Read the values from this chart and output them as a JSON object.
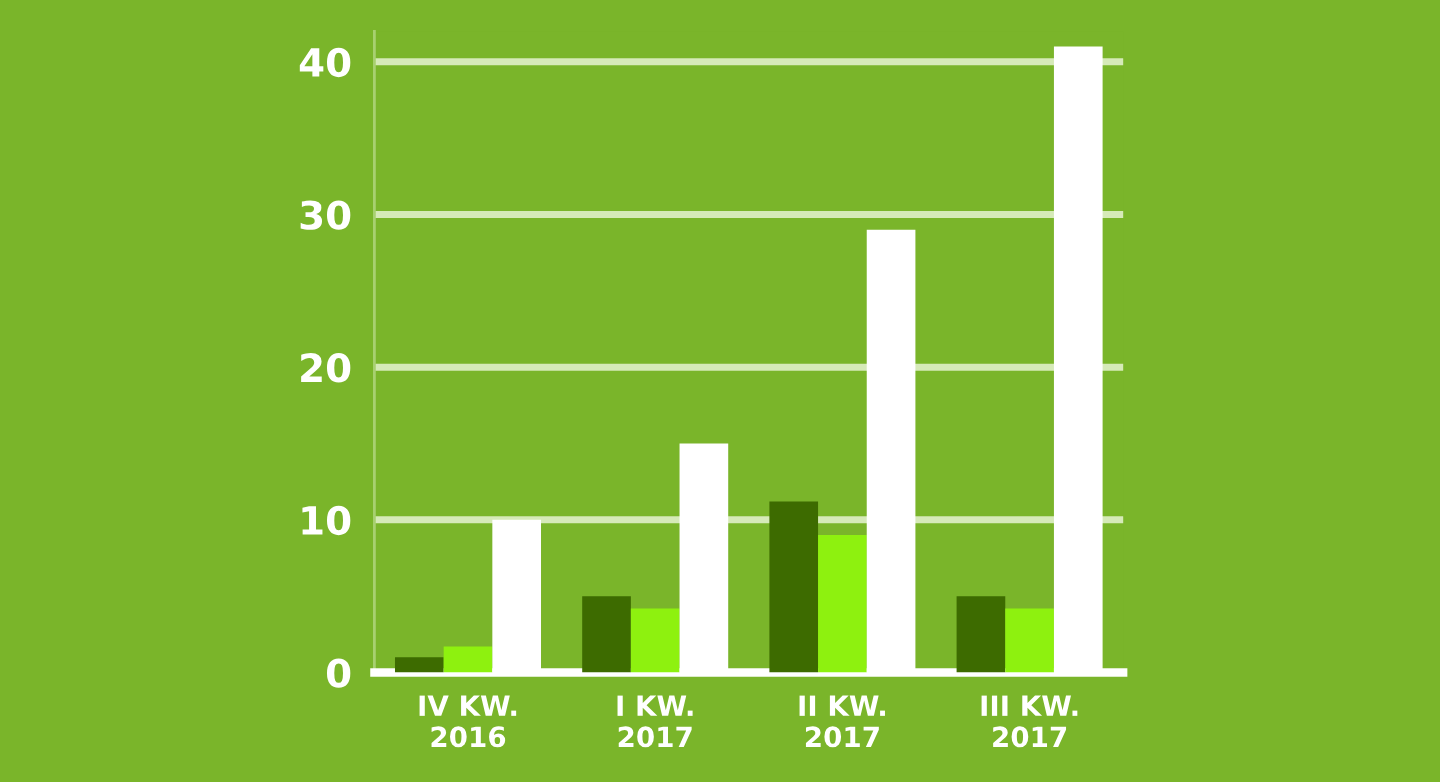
{
  "chart_data": {
    "type": "bar",
    "categories": [
      "IV KW.\n2016",
      "I KW.\n2017",
      "II KW.\n2017",
      "III KW.\n2017"
    ],
    "series": [
      {
        "color": "#3d6b00",
        "values": [
          1,
          5,
          11.2,
          5
        ]
      },
      {
        "color": "#8ef10f",
        "values": [
          1.7,
          4.2,
          9,
          4.2
        ]
      },
      {
        "color": "#ffffff",
        "values": [
          10,
          15,
          29,
          41
        ]
      }
    ],
    "ylim": [
      0,
      42
    ],
    "yticks": [
      0,
      10,
      20,
      30,
      40
    ],
    "grid": "y"
  }
}
